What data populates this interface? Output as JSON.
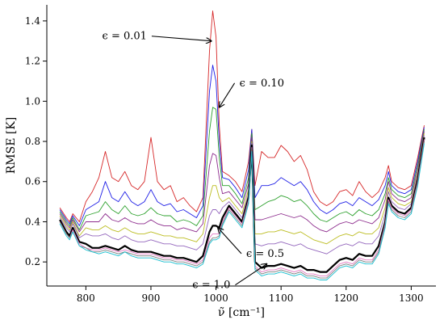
{
  "chart_data": {
    "type": "line",
    "xlabel": "ν̃ [cm⁻¹]",
    "ylabel": "RMSE [K]",
    "xlim": [
      740,
      1338
    ],
    "ylim": [
      0.08,
      1.48
    ],
    "xticks": [
      800,
      900,
      1000,
      1100,
      1200,
      1300
    ],
    "yticks": [
      0.2,
      0.4,
      0.6,
      0.8,
      1.0,
      1.2,
      1.4
    ],
    "grid": false,
    "x": [
      760,
      770,
      775,
      780,
      790,
      800,
      810,
      820,
      830,
      840,
      850,
      860,
      870,
      880,
      890,
      900,
      910,
      920,
      930,
      940,
      950,
      960,
      970,
      980,
      990,
      995,
      1000,
      1005,
      1010,
      1020,
      1030,
      1040,
      1050,
      1055,
      1060,
      1070,
      1080,
      1090,
      1100,
      1110,
      1120,
      1130,
      1140,
      1150,
      1160,
      1170,
      1180,
      1190,
      1200,
      1210,
      1220,
      1230,
      1240,
      1250,
      1260,
      1265,
      1270,
      1280,
      1290,
      1300,
      1310,
      1320
    ],
    "series": [
      {
        "color": "#d62728",
        "emphasis": false,
        "values": [
          0.47,
          0.42,
          0.4,
          0.44,
          0.4,
          0.5,
          0.55,
          0.62,
          0.75,
          0.62,
          0.6,
          0.65,
          0.58,
          0.56,
          0.6,
          0.82,
          0.6,
          0.56,
          0.58,
          0.5,
          0.52,
          0.48,
          0.45,
          0.52,
          1.25,
          1.45,
          1.32,
          0.88,
          0.65,
          0.63,
          0.6,
          0.55,
          0.7,
          0.86,
          0.58,
          0.75,
          0.72,
          0.72,
          0.78,
          0.75,
          0.7,
          0.73,
          0.66,
          0.55,
          0.5,
          0.48,
          0.5,
          0.55,
          0.56,
          0.53,
          0.6,
          0.55,
          0.52,
          0.55,
          0.62,
          0.68,
          0.6,
          0.57,
          0.56,
          0.58,
          0.72,
          0.88
        ]
      },
      {
        "color": "#1f1fe6",
        "emphasis": false,
        "values": [
          0.46,
          0.41,
          0.39,
          0.43,
          0.38,
          0.46,
          0.48,
          0.5,
          0.6,
          0.52,
          0.5,
          0.55,
          0.5,
          0.48,
          0.5,
          0.56,
          0.5,
          0.48,
          0.49,
          0.45,
          0.46,
          0.44,
          0.42,
          0.48,
          1.05,
          1.18,
          1.1,
          0.8,
          0.62,
          0.61,
          0.57,
          0.52,
          0.66,
          0.86,
          0.52,
          0.58,
          0.58,
          0.59,
          0.62,
          0.6,
          0.58,
          0.6,
          0.56,
          0.5,
          0.46,
          0.44,
          0.46,
          0.49,
          0.5,
          0.48,
          0.52,
          0.5,
          0.48,
          0.51,
          0.58,
          0.65,
          0.58,
          0.55,
          0.54,
          0.56,
          0.7,
          0.87
        ]
      },
      {
        "color": "#2ca02c",
        "emphasis": false,
        "values": [
          0.45,
          0.4,
          0.38,
          0.42,
          0.36,
          0.43,
          0.44,
          0.45,
          0.5,
          0.46,
          0.44,
          0.48,
          0.44,
          0.43,
          0.44,
          0.47,
          0.44,
          0.43,
          0.43,
          0.4,
          0.41,
          0.4,
          0.38,
          0.43,
          0.85,
          0.97,
          0.96,
          0.72,
          0.58,
          0.58,
          0.54,
          0.49,
          0.62,
          0.84,
          0.46,
          0.48,
          0.5,
          0.51,
          0.53,
          0.52,
          0.5,
          0.51,
          0.48,
          0.44,
          0.41,
          0.4,
          0.42,
          0.44,
          0.45,
          0.43,
          0.46,
          0.44,
          0.43,
          0.46,
          0.54,
          0.62,
          0.56,
          0.53,
          0.52,
          0.54,
          0.68,
          0.86
        ]
      },
      {
        "color": "#8c2a8c",
        "emphasis": false,
        "values": [
          0.44,
          0.39,
          0.37,
          0.41,
          0.35,
          0.4,
          0.4,
          0.4,
          0.44,
          0.41,
          0.4,
          0.42,
          0.4,
          0.39,
          0.39,
          0.41,
          0.39,
          0.38,
          0.38,
          0.36,
          0.37,
          0.36,
          0.35,
          0.39,
          0.68,
          0.74,
          0.73,
          0.62,
          0.54,
          0.55,
          0.51,
          0.47,
          0.59,
          0.82,
          0.41,
          0.41,
          0.42,
          0.43,
          0.44,
          0.43,
          0.42,
          0.43,
          0.41,
          0.38,
          0.36,
          0.35,
          0.37,
          0.39,
          0.4,
          0.39,
          0.41,
          0.4,
          0.39,
          0.42,
          0.51,
          0.6,
          0.54,
          0.51,
          0.5,
          0.52,
          0.66,
          0.85
        ]
      },
      {
        "color": "#bcbd22",
        "emphasis": false,
        "values": [
          0.43,
          0.38,
          0.36,
          0.4,
          0.33,
          0.37,
          0.36,
          0.36,
          0.38,
          0.36,
          0.35,
          0.37,
          0.35,
          0.34,
          0.34,
          0.35,
          0.34,
          0.33,
          0.33,
          0.32,
          0.32,
          0.31,
          0.3,
          0.34,
          0.52,
          0.58,
          0.58,
          0.52,
          0.5,
          0.52,
          0.48,
          0.44,
          0.56,
          0.8,
          0.34,
          0.34,
          0.35,
          0.35,
          0.36,
          0.35,
          0.34,
          0.35,
          0.33,
          0.31,
          0.3,
          0.29,
          0.31,
          0.33,
          0.34,
          0.33,
          0.35,
          0.34,
          0.34,
          0.37,
          0.47,
          0.57,
          0.52,
          0.49,
          0.48,
          0.5,
          0.64,
          0.84
        ]
      },
      {
        "color": "#9467bd",
        "emphasis": false,
        "values": [
          0.42,
          0.37,
          0.35,
          0.39,
          0.32,
          0.34,
          0.33,
          0.33,
          0.34,
          0.32,
          0.31,
          0.33,
          0.31,
          0.3,
          0.3,
          0.31,
          0.3,
          0.29,
          0.29,
          0.28,
          0.28,
          0.27,
          0.26,
          0.29,
          0.43,
          0.46,
          0.46,
          0.44,
          0.47,
          0.5,
          0.46,
          0.42,
          0.54,
          0.79,
          0.29,
          0.28,
          0.29,
          0.29,
          0.3,
          0.29,
          0.28,
          0.29,
          0.27,
          0.26,
          0.25,
          0.24,
          0.26,
          0.28,
          0.29,
          0.28,
          0.3,
          0.29,
          0.29,
          0.33,
          0.44,
          0.55,
          0.5,
          0.47,
          0.46,
          0.49,
          0.63,
          0.83
        ]
      },
      {
        "color": "#000000",
        "emphasis": true,
        "values": [
          0.41,
          0.35,
          0.33,
          0.37,
          0.3,
          0.29,
          0.27,
          0.27,
          0.28,
          0.27,
          0.26,
          0.28,
          0.26,
          0.25,
          0.25,
          0.25,
          0.24,
          0.23,
          0.23,
          0.22,
          0.22,
          0.21,
          0.2,
          0.23,
          0.35,
          0.38,
          0.38,
          0.37,
          0.42,
          0.48,
          0.44,
          0.4,
          0.52,
          0.78,
          0.2,
          0.17,
          0.18,
          0.18,
          0.19,
          0.18,
          0.17,
          0.18,
          0.16,
          0.16,
          0.15,
          0.15,
          0.18,
          0.21,
          0.22,
          0.21,
          0.24,
          0.23,
          0.23,
          0.28,
          0.4,
          0.52,
          0.48,
          0.45,
          0.44,
          0.47,
          0.61,
          0.82
        ]
      },
      {
        "color": "#e377c2",
        "emphasis": false,
        "values": [
          0.4,
          0.34,
          0.32,
          0.36,
          0.29,
          0.27,
          0.26,
          0.26,
          0.27,
          0.26,
          0.25,
          0.26,
          0.25,
          0.24,
          0.24,
          0.24,
          0.23,
          0.22,
          0.22,
          0.21,
          0.21,
          0.2,
          0.19,
          0.21,
          0.32,
          0.34,
          0.34,
          0.34,
          0.4,
          0.47,
          0.43,
          0.39,
          0.51,
          0.77,
          0.18,
          0.15,
          0.16,
          0.16,
          0.17,
          0.16,
          0.15,
          0.16,
          0.14,
          0.14,
          0.13,
          0.13,
          0.16,
          0.19,
          0.2,
          0.19,
          0.22,
          0.21,
          0.21,
          0.26,
          0.39,
          0.51,
          0.47,
          0.44,
          0.43,
          0.46,
          0.6,
          0.81
        ]
      },
      {
        "color": "#7f7f7f",
        "emphasis": false,
        "values": [
          0.4,
          0.34,
          0.32,
          0.35,
          0.28,
          0.27,
          0.25,
          0.25,
          0.26,
          0.25,
          0.24,
          0.25,
          0.24,
          0.23,
          0.23,
          0.23,
          0.22,
          0.21,
          0.21,
          0.2,
          0.2,
          0.19,
          0.18,
          0.2,
          0.3,
          0.32,
          0.32,
          0.33,
          0.39,
          0.46,
          0.42,
          0.38,
          0.5,
          0.76,
          0.17,
          0.14,
          0.15,
          0.15,
          0.16,
          0.15,
          0.14,
          0.15,
          0.13,
          0.13,
          0.12,
          0.12,
          0.15,
          0.18,
          0.19,
          0.18,
          0.21,
          0.2,
          0.2,
          0.25,
          0.38,
          0.5,
          0.46,
          0.43,
          0.42,
          0.45,
          0.59,
          0.8
        ]
      },
      {
        "color": "#17becf",
        "emphasis": false,
        "values": [
          0.39,
          0.33,
          0.31,
          0.35,
          0.28,
          0.26,
          0.25,
          0.24,
          0.25,
          0.24,
          0.23,
          0.25,
          0.23,
          0.22,
          0.22,
          0.22,
          0.21,
          0.2,
          0.2,
          0.19,
          0.19,
          0.18,
          0.17,
          0.19,
          0.29,
          0.31,
          0.31,
          0.32,
          0.38,
          0.45,
          0.41,
          0.37,
          0.49,
          0.75,
          0.16,
          0.13,
          0.14,
          0.14,
          0.15,
          0.14,
          0.13,
          0.14,
          0.12,
          0.12,
          0.11,
          0.11,
          0.14,
          0.17,
          0.18,
          0.17,
          0.2,
          0.19,
          0.19,
          0.24,
          0.37,
          0.49,
          0.45,
          0.42,
          0.41,
          0.44,
          0.58,
          0.79
        ]
      }
    ],
    "annotations": [
      {
        "id": "eps001",
        "text": "ϵ = 0.01",
        "x": 993,
        "y": 1.3
      },
      {
        "id": "eps010",
        "text": "ϵ = 0.10",
        "x": 1005,
        "y": 0.97
      },
      {
        "id": "eps05",
        "text": "ϵ = 0.5",
        "x": 1003,
        "y": 0.37
      },
      {
        "id": "eps10",
        "text": "ϵ = 1.0",
        "x": 1078,
        "y": 0.19
      }
    ]
  }
}
